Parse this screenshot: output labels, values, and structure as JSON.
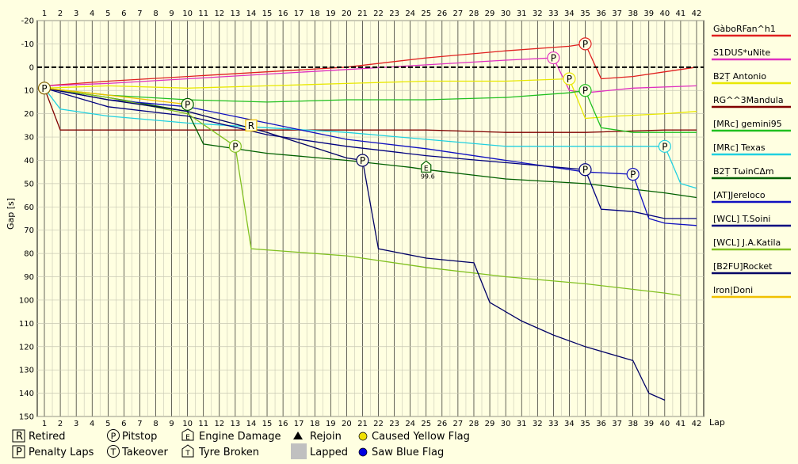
{
  "chart_data": {
    "type": "line",
    "title": "",
    "xlabel": "Lap",
    "ylabel": "Gap [s]",
    "xlim": [
      1,
      42
    ],
    "ylim": [
      -20,
      150
    ],
    "y_inverted": true,
    "x_ticks": [
      1,
      2,
      3,
      4,
      5,
      6,
      7,
      8,
      9,
      10,
      11,
      12,
      13,
      14,
      15,
      16,
      17,
      18,
      19,
      20,
      21,
      22,
      23,
      24,
      25,
      26,
      27,
      28,
      29,
      30,
      31,
      32,
      33,
      34,
      35,
      36,
      37,
      38,
      39,
      40,
      41,
      42
    ],
    "y_ticks": [
      -20,
      -10,
      0,
      10,
      20,
      30,
      40,
      50,
      60,
      70,
      80,
      90,
      100,
      110,
      120,
      130,
      140,
      150
    ],
    "grid": true,
    "legend_position": "right",
    "series": [
      {
        "name": "GàboRFan^h1",
        "color": "#e02020",
        "x": [
          1,
          5,
          10,
          15,
          20,
          25,
          30,
          34,
          35,
          36,
          38,
          40,
          42
        ],
        "y": [
          8,
          6,
          4,
          2,
          0,
          -4,
          -7,
          -9,
          -10,
          5,
          4,
          2,
          0
        ]
      },
      {
        "name": "S1DUS*uNite",
        "color": "#e030c0",
        "x": [
          1,
          5,
          10,
          15,
          20,
          25,
          30,
          33,
          34,
          35,
          38,
          42
        ],
        "y": [
          8,
          7,
          5,
          3,
          1,
          -1,
          -3,
          -4,
          10,
          11,
          9,
          8
        ]
      },
      {
        "name": "B2Ț Antonio",
        "color": "#e8e800",
        "x": [
          1,
          5,
          10,
          15,
          20,
          25,
          30,
          34,
          35,
          37,
          40,
          42
        ],
        "y": [
          9,
          8,
          9,
          8,
          7,
          6,
          6,
          5,
          22,
          21,
          20,
          19
        ]
      },
      {
        "name": "RG^^3Mandula",
        "color": "#800000",
        "x": [
          1,
          2,
          5,
          10,
          15,
          20,
          25,
          30,
          35,
          40,
          42
        ],
        "y": [
          9,
          27,
          27,
          27,
          27,
          27,
          27,
          28,
          28,
          27,
          27
        ]
      },
      {
        "name": "[MRc] gemini95",
        "color": "#20c020",
        "x": [
          1,
          5,
          10,
          15,
          20,
          25,
          30,
          34,
          35,
          36,
          38,
          40,
          42
        ],
        "y": [
          9,
          12,
          14,
          15,
          14,
          14,
          13,
          11,
          10,
          26,
          28,
          28,
          28
        ]
      },
      {
        "name": "[MRc] Texas",
        "color": "#20d0e0",
        "x": [
          1,
          2,
          5,
          10,
          15,
          20,
          25,
          30,
          35,
          40,
          41,
          42
        ],
        "y": [
          9,
          18,
          21,
          24,
          26,
          28,
          31,
          34,
          34,
          34,
          50,
          52
        ]
      },
      {
        "name": "B2Ț TωinCΔm",
        "color": "#006000",
        "x": [
          1,
          5,
          10,
          11,
          15,
          20,
          24,
          25,
          30,
          35,
          40,
          42
        ],
        "y": [
          9,
          13,
          19,
          33,
          37,
          40,
          43,
          44,
          48,
          50,
          54,
          56
        ]
      },
      {
        "name": "[AT]Jereloco",
        "color": "#1010c0",
        "x": [
          1,
          5,
          10,
          15,
          20,
          25,
          30,
          35,
          38,
          39,
          40,
          42
        ],
        "y": [
          9,
          14,
          17,
          24,
          31,
          35,
          40,
          45,
          46,
          65,
          67,
          68
        ]
      },
      {
        "name": "[WCL] T.Soini",
        "color": "#000080",
        "x": [
          1,
          5,
          10,
          15,
          20,
          25,
          30,
          35,
          36,
          38,
          40,
          42
        ],
        "y": [
          9,
          17,
          21,
          29,
          34,
          38,
          41,
          44,
          61,
          62,
          65,
          65
        ]
      },
      {
        "name": "[WCL] J.A.Katila",
        "color": "#80c020",
        "x": [
          1,
          5,
          10,
          13,
          14,
          20,
          25,
          30,
          35,
          40,
          41
        ],
        "y": [
          9,
          13,
          20,
          34,
          78,
          81,
          86,
          90,
          93,
          97,
          98
        ]
      },
      {
        "name": "[B2FU]Rocket",
        "color": "#000066",
        "x": [
          1,
          5,
          10,
          15,
          20,
          21,
          22,
          25,
          28,
          29,
          31,
          33,
          35,
          37,
          38,
          39,
          40
        ],
        "y": [
          9,
          14,
          19,
          28,
          39,
          40,
          78,
          82,
          84,
          101,
          109,
          115,
          120,
          124,
          126,
          140,
          143
        ]
      },
      {
        "name": "Iron|Doni",
        "color": "#f0c000",
        "x": [
          1,
          5,
          10
        ],
        "y": [
          9,
          12,
          16
        ]
      }
    ],
    "annotations": [
      {
        "symbol": "P",
        "lap": 1,
        "gap": 9,
        "color": "#806000"
      },
      {
        "symbol": "P",
        "lap": 35,
        "gap": -10,
        "color": "#e02020"
      },
      {
        "symbol": "P",
        "lap": 33,
        "gap": -4,
        "color": "#e030c0"
      },
      {
        "symbol": "P",
        "lap": 34,
        "gap": 5,
        "color": "#e8e800"
      },
      {
        "symbol": "P",
        "lap": 35,
        "gap": 10,
        "color": "#20c020"
      },
      {
        "symbol": "P",
        "lap": 10,
        "gap": 16,
        "color": "#006000"
      },
      {
        "symbol": "R",
        "lap": 14,
        "gap": 25,
        "color": "#f0c000"
      },
      {
        "symbol": "P",
        "lap": 13,
        "gap": 34,
        "color": "#80c020"
      },
      {
        "symbol": "P",
        "lap": 21,
        "gap": 40,
        "color": "#000066"
      },
      {
        "symbol": "E",
        "lap": 25,
        "gap": 43,
        "color": "#006000",
        "label": "99.6"
      },
      {
        "symbol": "P",
        "lap": 35,
        "gap": 44,
        "color": "#000080"
      },
      {
        "symbol": "P",
        "lap": 38,
        "gap": 46,
        "color": "#1010c0"
      },
      {
        "symbol": "P",
        "lap": 40,
        "gap": 34,
        "color": "#20d0e0"
      }
    ]
  },
  "bottom_legend": {
    "retired": "Retired",
    "penalty": "Penalty Laps",
    "pitstop": "Pitstop",
    "takeover": "Takeover",
    "engine": "Engine Damage",
    "tyre": "Tyre Broken",
    "rejoin": "Rejoin",
    "lapped": "Lapped",
    "yellow": "Caused Yellow Flag",
    "blue": "Saw Blue Flag"
  }
}
